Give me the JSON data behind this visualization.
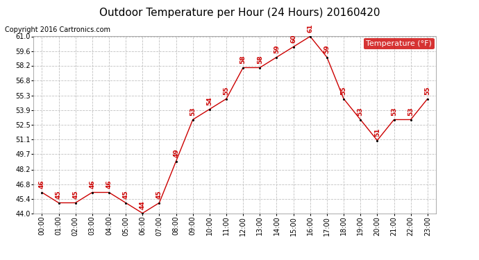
{
  "title": "Outdoor Temperature per Hour (24 Hours) 20160420",
  "copyright": "Copyright 2016 Cartronics.com",
  "legend_label": "Temperature (°F)",
  "hours": [
    "00:00",
    "01:00",
    "02:00",
    "03:00",
    "04:00",
    "05:00",
    "06:00",
    "07:00",
    "08:00",
    "09:00",
    "10:00",
    "11:00",
    "12:00",
    "13:00",
    "14:00",
    "15:00",
    "16:00",
    "17:00",
    "18:00",
    "19:00",
    "20:00",
    "21:00",
    "22:00",
    "23:00"
  ],
  "temps": [
    46,
    45,
    45,
    46,
    46,
    45,
    44,
    45,
    49,
    53,
    54,
    55,
    58,
    58,
    59,
    60,
    61,
    59,
    55,
    53,
    51,
    53,
    53,
    55
  ],
  "ylim": [
    44.0,
    61.0
  ],
  "yticks": [
    44.0,
    45.4,
    46.8,
    48.2,
    49.7,
    51.1,
    52.5,
    53.9,
    55.3,
    56.8,
    58.2,
    59.6,
    61.0
  ],
  "line_color": "#cc0000",
  "marker_color": "#000000",
  "label_color": "#cc0000",
  "grid_color": "#c0c0c0",
  "bg_color": "#ffffff",
  "title_fontsize": 11,
  "copyright_fontsize": 7,
  "tick_label_fontsize": 7,
  "data_label_fontsize": 6.5,
  "legend_bg": "#cc0000",
  "legend_text_color": "#ffffff",
  "legend_fontsize": 8
}
